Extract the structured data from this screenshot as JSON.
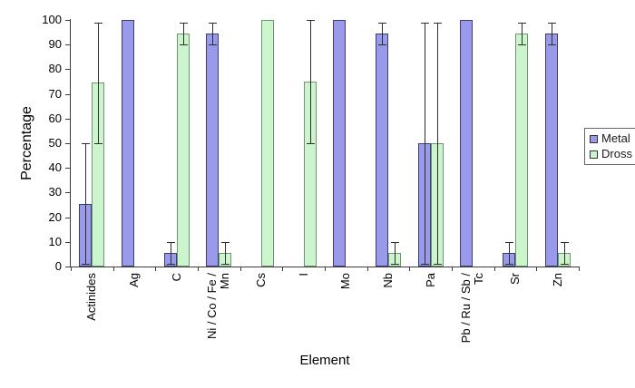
{
  "window": {
    "background": "#ffffff"
  },
  "chart_data": {
    "type": "bar",
    "title": "",
    "xlabel": "Element",
    "ylabel": "Percentage",
    "ylim": [
      0,
      100
    ],
    "ytick_step": 10,
    "grid": false,
    "legend_position": "right",
    "axis_color": "#3c3c3c",
    "error_bar_color": "#2e2e2e",
    "categories": [
      "Actinides",
      "Ag",
      "C",
      "Ni / Co / Fe /\nMn",
      "Cs",
      "I",
      "Mo",
      "Nb",
      "Pa",
      "Pb / Ru / Sb /\nTc",
      "Sr",
      "Zn"
    ],
    "series": [
      {
        "name": "Metal",
        "fill": "#9a9aea",
        "border": "#3c3c78",
        "values": [
          25.5,
          100,
          5.5,
          94.5,
          null,
          null,
          100,
          94.5,
          50,
          100,
          5.5,
          94.5
        ],
        "error_low": [
          1,
          null,
          1,
          90,
          null,
          null,
          null,
          90,
          1,
          null,
          1,
          90
        ],
        "error_high": [
          50,
          null,
          10,
          99,
          null,
          null,
          null,
          99,
          99,
          null,
          10,
          99
        ]
      },
      {
        "name": "Dross",
        "fill": "#cdf5cd",
        "border": "#6e966e",
        "values": [
          74.5,
          null,
          94.5,
          5.5,
          100,
          75,
          null,
          5.5,
          50,
          null,
          94.5,
          5.5
        ],
        "error_low": [
          50,
          null,
          90,
          1,
          null,
          50,
          null,
          1,
          1,
          null,
          90,
          1
        ],
        "error_high": [
          99,
          null,
          99,
          10,
          null,
          100,
          null,
          10,
          99,
          null,
          99,
          10
        ]
      }
    ]
  }
}
